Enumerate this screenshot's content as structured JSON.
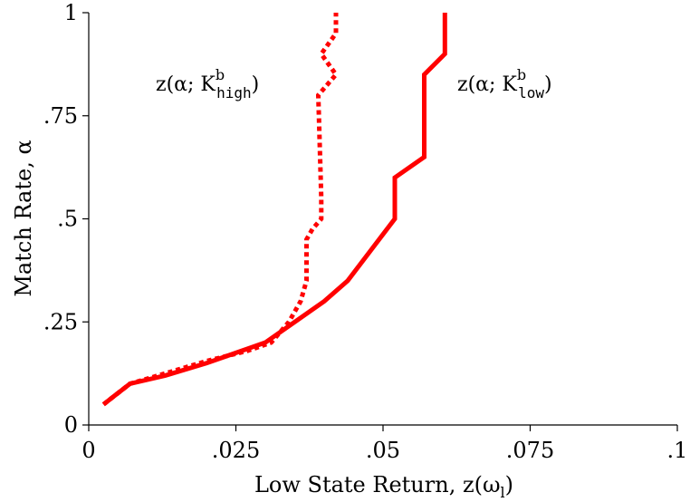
{
  "chart_data": {
    "type": "line",
    "xlabel": "Low State Return, z(ω",
    "xlabel_sub": "l",
    "xlabel_close": ")",
    "ylabel": "Match Rate, α",
    "xlim": [
      0,
      0.1
    ],
    "ylim": [
      0,
      1
    ],
    "x_ticks": [
      0,
      0.025,
      0.05,
      0.075,
      0.1
    ],
    "x_tick_labels": [
      "0",
      ".025",
      ".05",
      ".075",
      ".1"
    ],
    "y_ticks": [
      0,
      0.25,
      0.5,
      0.75,
      1
    ],
    "y_tick_labels": [
      "0",
      ".25",
      ".5",
      ".75",
      "1"
    ],
    "grid": false,
    "series": [
      {
        "style": "dotted",
        "color": "#ff0000",
        "label_parts": {
          "pre": "z(α; K",
          "sup": "b",
          "sub": "high",
          "post": ")"
        },
        "points": [
          [
            0.0025,
            0.05
          ],
          [
            0.007,
            0.1
          ],
          [
            0.013,
            0.125
          ],
          [
            0.02,
            0.155
          ],
          [
            0.027,
            0.18
          ],
          [
            0.031,
            0.2
          ],
          [
            0.034,
            0.25
          ],
          [
            0.036,
            0.3
          ],
          [
            0.037,
            0.35
          ],
          [
            0.037,
            0.45
          ],
          [
            0.038,
            0.475
          ],
          [
            0.0395,
            0.5
          ],
          [
            0.0395,
            0.55
          ],
          [
            0.039,
            0.8
          ],
          [
            0.042,
            0.85
          ],
          [
            0.0395,
            0.9
          ],
          [
            0.042,
            0.95
          ],
          [
            0.042,
            1.0
          ]
        ]
      },
      {
        "style": "solid",
        "color": "#ff0000",
        "label_parts": {
          "pre": "z(α; K",
          "sup": "b",
          "sub": "low",
          "post": ")"
        },
        "points": [
          [
            0.0025,
            0.05
          ],
          [
            0.007,
            0.1
          ],
          [
            0.013,
            0.12
          ],
          [
            0.02,
            0.15
          ],
          [
            0.025,
            0.175
          ],
          [
            0.03,
            0.2
          ],
          [
            0.035,
            0.25
          ],
          [
            0.04,
            0.3
          ],
          [
            0.044,
            0.35
          ],
          [
            0.048,
            0.425
          ],
          [
            0.052,
            0.5
          ],
          [
            0.052,
            0.6
          ],
          [
            0.057,
            0.65
          ],
          [
            0.057,
            0.85
          ],
          [
            0.0605,
            0.9
          ],
          [
            0.0605,
            1.0
          ]
        ]
      }
    ]
  }
}
